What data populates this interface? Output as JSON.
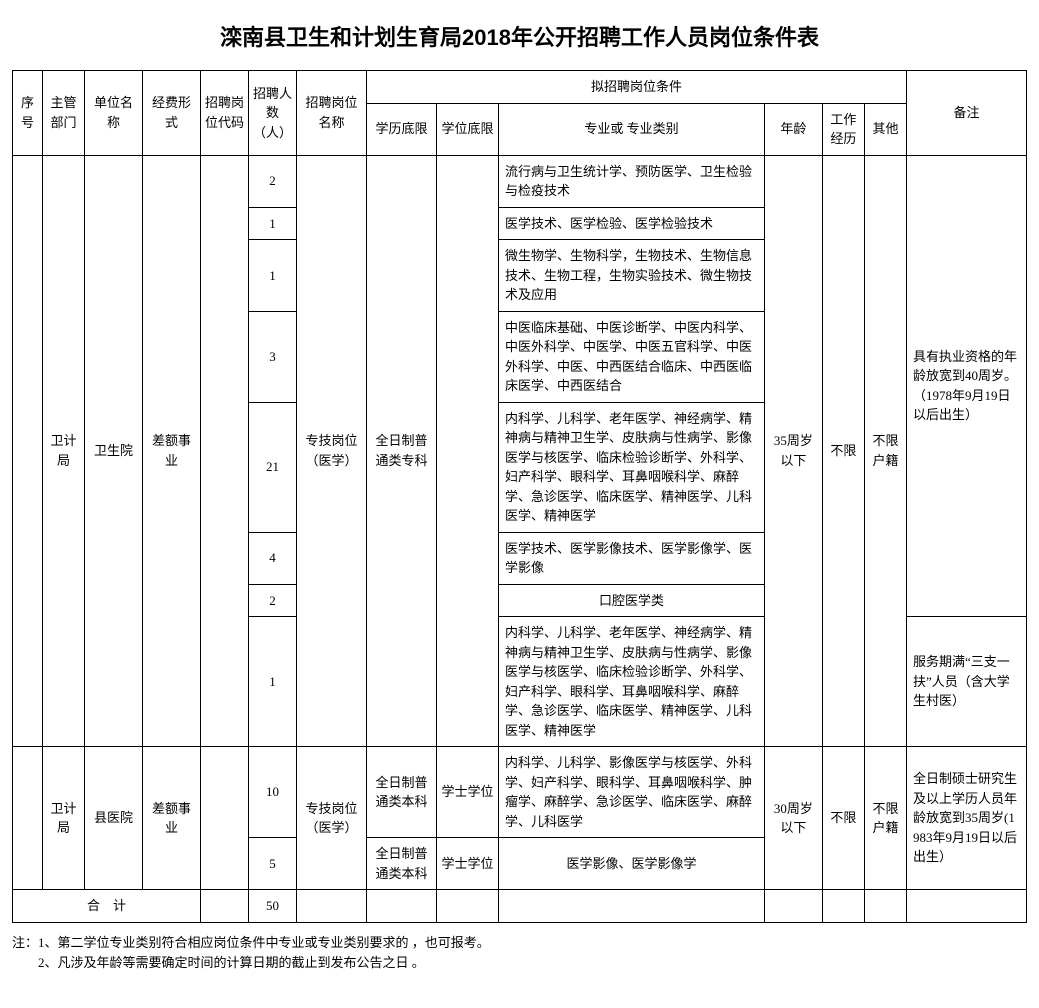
{
  "title": "滦南县卫生和计划生育局2018年公开招聘工作人员岗位条件表",
  "headers": {
    "seq": "序号",
    "dept": "主管部门",
    "unit": "单位名称",
    "funding": "经费形式",
    "postCode": "招聘岗位代码",
    "count": "招聘人数（人）",
    "postName": "招聘岗位名称",
    "condGroup": "拟招聘岗位条件",
    "eduMin": "学历底限",
    "degreeMin": "学位底限",
    "major": "专业或\n专业类别",
    "age": "年龄",
    "exp": "工作经历",
    "other": "其他",
    "remark": "备注"
  },
  "group1": {
    "dept": "卫计局",
    "unit": "卫生院",
    "funding": "差额事业",
    "postName": "专技岗位（医学）",
    "eduMin": "全日制普通类专科",
    "age": "35周岁以下",
    "exp": "不限",
    "other": "不限户籍",
    "remark1": "具有执业资格的年龄放宽到40周岁。\n（1978年9月19日以后出生）",
    "remark2": "服务期满“三支一扶”人员（含大学生村医）",
    "rows": [
      {
        "count": "2",
        "major": "流行病与卫生统计学、预防医学、卫生检验与检疫技术"
      },
      {
        "count": "1",
        "major": "医学技术、医学检验、医学检验技术"
      },
      {
        "count": "1",
        "major": "微生物学、生物科学，生物技术、生物信息技术、生物工程，生物实验技术、微生物技术及应用"
      },
      {
        "count": "3",
        "major": "中医临床基础、中医诊断学、中医内科学、中医外科学、中医学、中医五官科学、中医外科学、中医、中西医结合临床、中西医临床医学、中西医结合"
      },
      {
        "count": "21",
        "major": "内科学、儿科学、老年医学、神经病学、精神病与精神卫生学、皮肤病与性病学、影像医学与核医学、临床检验诊断学、外科学、妇产科学、眼科学、耳鼻咽喉科学、麻醉学、急诊医学、临床医学、精神医学、儿科医学、精神医学"
      },
      {
        "count": "4",
        "major": "医学技术、医学影像技术、医学影像学、医学影像"
      },
      {
        "count": "2",
        "major": "口腔医学类",
        "center": true
      },
      {
        "count": "1",
        "major": "内科学、儿科学、老年医学、神经病学、精神病与精神卫生学、皮肤病与性病学、影像医学与核医学、临床检验诊断学、外科学、妇产科学、眼科学、耳鼻咽喉科学、麻醉学、急诊医学、临床医学、精神医学、儿科医学、精神医学"
      }
    ]
  },
  "group2": {
    "dept": "卫计局",
    "unit": "县医院",
    "funding": "差额事业",
    "postName": "专技岗位（医学）",
    "age": "30周岁以下",
    "exp": "不限",
    "other": "不限户籍",
    "remark": "全日制硕士研究生及以上学历人员年龄放宽到35周岁(1983年9月19日以后出生）",
    "rows": [
      {
        "count": "10",
        "eduMin": "全日制普通类本科",
        "degreeMin": "学士学位",
        "major": "内科学、儿科学、影像医学与核医学、外科学、妇产科学、眼科学、耳鼻咽喉科学、肿瘤学、麻醉学、急诊医学、临床医学、麻醉学、儿科医学"
      },
      {
        "count": "5",
        "eduMin": "全日制普通类本科",
        "degreeMin": "学士学位",
        "major": "医学影像、医学影像学",
        "center": true
      }
    ]
  },
  "total": {
    "label": "合　计",
    "count": "50"
  },
  "footnotes": {
    "n1": "注：1、第二学位专业类别符合相应岗位条件中专业或专业类别要求的 ，也可报考。",
    "n2": "　　2、凡涉及年龄等需要确定时间的计算日期的截止到发布公告之日 。"
  }
}
